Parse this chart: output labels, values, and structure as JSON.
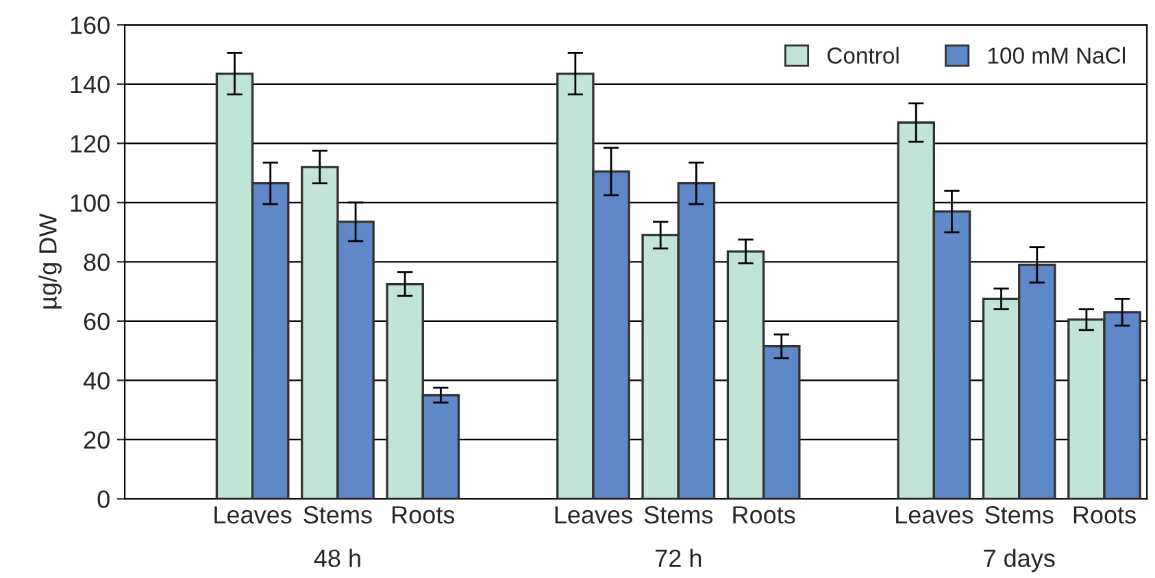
{
  "chart_data": {
    "type": "bar",
    "ylabel": "µg/g DW",
    "categories": [
      null,
      "Leaves",
      "Stems",
      "Roots",
      null,
      "Leaves",
      "Stems",
      "Roots",
      null,
      "Leaves",
      "Stems",
      "Roots"
    ],
    "series": [
      {
        "name": "Control",
        "color": "#c0e4d6",
        "values": [
          null,
          143.5,
          112,
          72.5,
          null,
          143.5,
          89,
          83.5,
          null,
          127,
          67.5,
          60.5
        ],
        "errors": [
          null,
          7,
          5.5,
          4,
          null,
          7,
          4.5,
          4,
          null,
          6.5,
          3.5,
          3.5
        ]
      },
      {
        "name": "100 mM NaCl",
        "color": "#5f88c8",
        "values": [
          null,
          106.5,
          93.5,
          35,
          null,
          110.5,
          106.5,
          51.5,
          null,
          97,
          79,
          63
        ],
        "errors": [
          null,
          7,
          6.5,
          2.5,
          null,
          8,
          7,
          4,
          null,
          7,
          6,
          4.5
        ]
      }
    ],
    "annotations": [
      "48 h",
      "72 h",
      "7 days"
    ],
    "ylim": [
      0,
      160
    ],
    "yticks": [
      0,
      20,
      40,
      60,
      80,
      100,
      120,
      140,
      160
    ],
    "grid": "y",
    "legend": "top right"
  }
}
